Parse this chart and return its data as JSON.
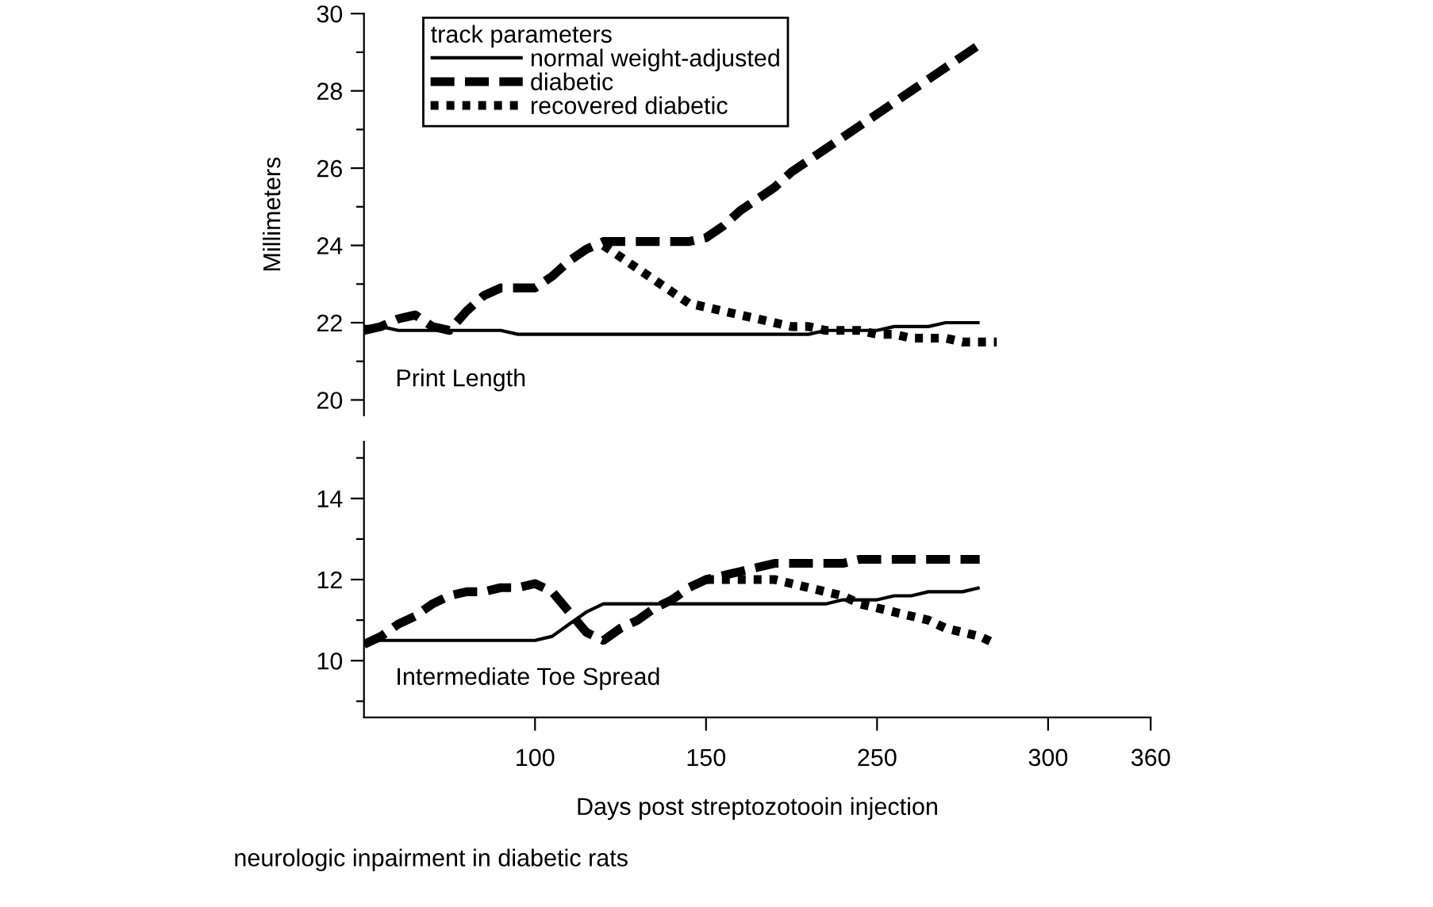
{
  "chart_data": [
    {
      "type": "line",
      "ylabel": "Millimeters",
      "legend_title": "track parameters",
      "legend": "top left",
      "grid": false,
      "tick_labels": "y",
      "marker": "none",
      "annotations": [
        "Print Length"
      ],
      "categories": [
        null,
        null,
        null,
        null,
        null,
        null,
        null,
        null,
        null,
        null,
        "100",
        null,
        null,
        null,
        null,
        null,
        null,
        null,
        null,
        null,
        "150",
        null,
        null,
        null,
        null,
        null,
        null,
        null,
        null,
        null,
        "250",
        null,
        null,
        null,
        null,
        null,
        null,
        null,
        null,
        null,
        "300",
        null,
        null,
        null,
        null,
        null,
        "360"
      ],
      "ylim": [
        19.6,
        30
      ],
      "yticks": [
        20,
        {
          "value": 21,
          "label": null
        },
        22,
        {
          "value": 23,
          "label": null
        },
        24,
        {
          "value": 25,
          "label": null
        },
        26,
        {
          "value": 27,
          "label": null
        },
        28,
        {
          "value": 29,
          "label": null
        },
        30
      ],
      "series": [
        {
          "name": "normal weight-adjusted",
          "color": "#000000",
          "line_style": "solid",
          "values": [
            21.9,
            21.9,
            21.8,
            21.8,
            21.8,
            21.8,
            21.8,
            21.8,
            21.8,
            21.7,
            21.7,
            21.7,
            21.7,
            21.7,
            21.7,
            21.7,
            21.7,
            21.7,
            21.7,
            21.7,
            21.7,
            21.7,
            21.7,
            21.7,
            21.7,
            21.7,
            21.7,
            21.8,
            21.8,
            21.8,
            21.8,
            21.9,
            21.9,
            21.9,
            22.0,
            22.0,
            22.0,
            null,
            null,
            null,
            null,
            null,
            null,
            null,
            null,
            null,
            null
          ]
        },
        {
          "name": "diabetic",
          "color": "#000000",
          "line_style": "dashed",
          "values": [
            21.8,
            21.9,
            22.1,
            22.2,
            21.9,
            21.8,
            22.3,
            22.7,
            22.9,
            22.9,
            22.9,
            23.2,
            23.6,
            23.9,
            24.1,
            24.1,
            24.1,
            24.1,
            24.1,
            24.1,
            24.2,
            24.5,
            24.9,
            25.2,
            25.5,
            25.9,
            26.2,
            26.5,
            26.8,
            27.1,
            27.4,
            27.7,
            28.0,
            28.3,
            28.6,
            28.9,
            29.2,
            null,
            null,
            null,
            null,
            null,
            null,
            null,
            null,
            null,
            null
          ]
        },
        {
          "name": "recovered diabetic",
          "color": "#000000",
          "line_style": "dotted",
          "values": [
            null,
            null,
            null,
            null,
            null,
            null,
            null,
            null,
            null,
            null,
            null,
            null,
            null,
            null,
            24.0,
            23.7,
            23.4,
            23.1,
            22.8,
            22.5,
            22.4,
            22.3,
            22.2,
            22.1,
            22.0,
            21.9,
            21.9,
            21.8,
            21.8,
            21.8,
            21.7,
            21.7,
            21.6,
            21.6,
            21.6,
            21.5,
            21.5,
            21.5,
            null,
            null,
            null,
            null,
            null,
            null,
            null,
            null,
            null
          ]
        }
      ]
    },
    {
      "type": "line",
      "xlabel": "Days post streptozotooin injection",
      "grid": false,
      "legend": false,
      "marker": "none",
      "annotations": [
        "Intermediate Toe Spread",
        "neurologic inpairment in diabetic rats"
      ],
      "categories": [
        null,
        null,
        null,
        null,
        null,
        null,
        null,
        null,
        null,
        null,
        "100",
        null,
        null,
        null,
        null,
        null,
        null,
        null,
        null,
        null,
        "150",
        null,
        null,
        null,
        null,
        null,
        null,
        null,
        null,
        null,
        "250",
        null,
        null,
        null,
        null,
        null,
        null,
        null,
        null,
        null,
        "300",
        null,
        null,
        null,
        null,
        null,
        "360"
      ],
      "ylim": [
        8.6,
        15.4
      ],
      "yticks": [
        {
          "value": 9,
          "label": null
        },
        10,
        {
          "value": 11,
          "label": null
        },
        12,
        {
          "value": 13,
          "label": null
        },
        14,
        {
          "value": 15,
          "label": null
        }
      ],
      "series": [
        {
          "color": "#000000",
          "line_style": "solid",
          "values": [
            10.5,
            10.5,
            10.5,
            10.5,
            10.5,
            10.5,
            10.5,
            10.5,
            10.5,
            10.5,
            10.5,
            10.6,
            10.9,
            11.2,
            11.4,
            11.4,
            11.4,
            11.4,
            11.4,
            11.4,
            11.4,
            11.4,
            11.4,
            11.4,
            11.4,
            11.4,
            11.4,
            11.4,
            11.5,
            11.5,
            11.5,
            11.6,
            11.6,
            11.7,
            11.7,
            11.7,
            11.8,
            null,
            null,
            null,
            null,
            null,
            null,
            null,
            null,
            null,
            null
          ]
        },
        {
          "color": "#000000",
          "line_style": "dashed",
          "values": [
            10.4,
            10.6,
            10.9,
            11.1,
            11.4,
            11.6,
            11.7,
            11.7,
            11.8,
            11.8,
            11.9,
            11.7,
            11.2,
            10.7,
            10.5,
            10.8,
            11.0,
            11.3,
            11.5,
            11.8,
            12.0,
            12.1,
            12.2,
            12.3,
            12.4,
            12.4,
            12.4,
            12.4,
            12.4,
            12.5,
            12.5,
            12.5,
            12.5,
            12.5,
            12.5,
            12.5,
            12.5,
            null,
            null,
            null,
            null,
            null,
            null,
            null,
            null,
            null,
            null
          ]
        },
        {
          "color": "#000000",
          "line_style": "dotted",
          "values": [
            null,
            null,
            null,
            null,
            null,
            null,
            null,
            null,
            null,
            null,
            null,
            null,
            null,
            null,
            null,
            null,
            null,
            null,
            null,
            null,
            12.0,
            12.0,
            12.0,
            12.0,
            12.0,
            11.9,
            11.8,
            11.7,
            11.6,
            11.4,
            11.3,
            11.2,
            11.1,
            11.0,
            10.8,
            10.7,
            10.6,
            10.4,
            null,
            null,
            null,
            null,
            null,
            null,
            null,
            null,
            null
          ]
        }
      ]
    }
  ]
}
